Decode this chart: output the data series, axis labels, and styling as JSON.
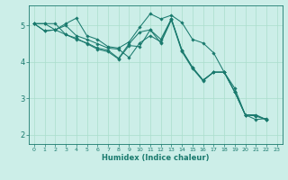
{
  "xlabel": "Humidex (Indice chaleur)",
  "bg_color": "#cceee8",
  "line_color": "#1a7a6e",
  "grid_color": "#aaddcc",
  "xlim": [
    -0.5,
    23.5
  ],
  "ylim": [
    1.75,
    5.55
  ],
  "yticks": [
    2,
    3,
    4,
    5
  ],
  "xticks": [
    0,
    1,
    2,
    3,
    4,
    5,
    6,
    7,
    8,
    9,
    10,
    11,
    12,
    13,
    14,
    15,
    16,
    17,
    18,
    19,
    20,
    21,
    22,
    23
  ],
  "series": [
    [
      5.05,
      4.85,
      4.88,
      5.05,
      5.2,
      4.72,
      4.62,
      4.42,
      4.38,
      4.55,
      4.95,
      5.32,
      5.18,
      5.28,
      5.08,
      4.62,
      4.52,
      4.25,
      3.72,
      3.28,
      2.55,
      2.42,
      2.45
    ],
    [
      5.05,
      4.85,
      4.88,
      5.0,
      4.72,
      4.62,
      4.5,
      4.38,
      4.35,
      4.12,
      4.52,
      4.72,
      4.55,
      5.18,
      4.32,
      3.85,
      3.5,
      3.72,
      3.72,
      3.18,
      2.55,
      2.55,
      2.42
    ],
    [
      5.05,
      5.05,
      5.05,
      4.75,
      4.62,
      4.52,
      4.38,
      4.32,
      4.1,
      4.5,
      4.82,
      4.88,
      4.62,
      5.18,
      4.32,
      3.85,
      3.5,
      3.72,
      3.72,
      3.18,
      2.55,
      2.52,
      2.42
    ],
    [
      5.05,
      5.05,
      4.88,
      4.75,
      4.65,
      4.5,
      4.35,
      4.28,
      4.08,
      4.45,
      4.42,
      4.88,
      4.52,
      5.15,
      4.28,
      3.82,
      3.48,
      3.72,
      3.72,
      3.18,
      2.55,
      2.52,
      2.42
    ]
  ]
}
